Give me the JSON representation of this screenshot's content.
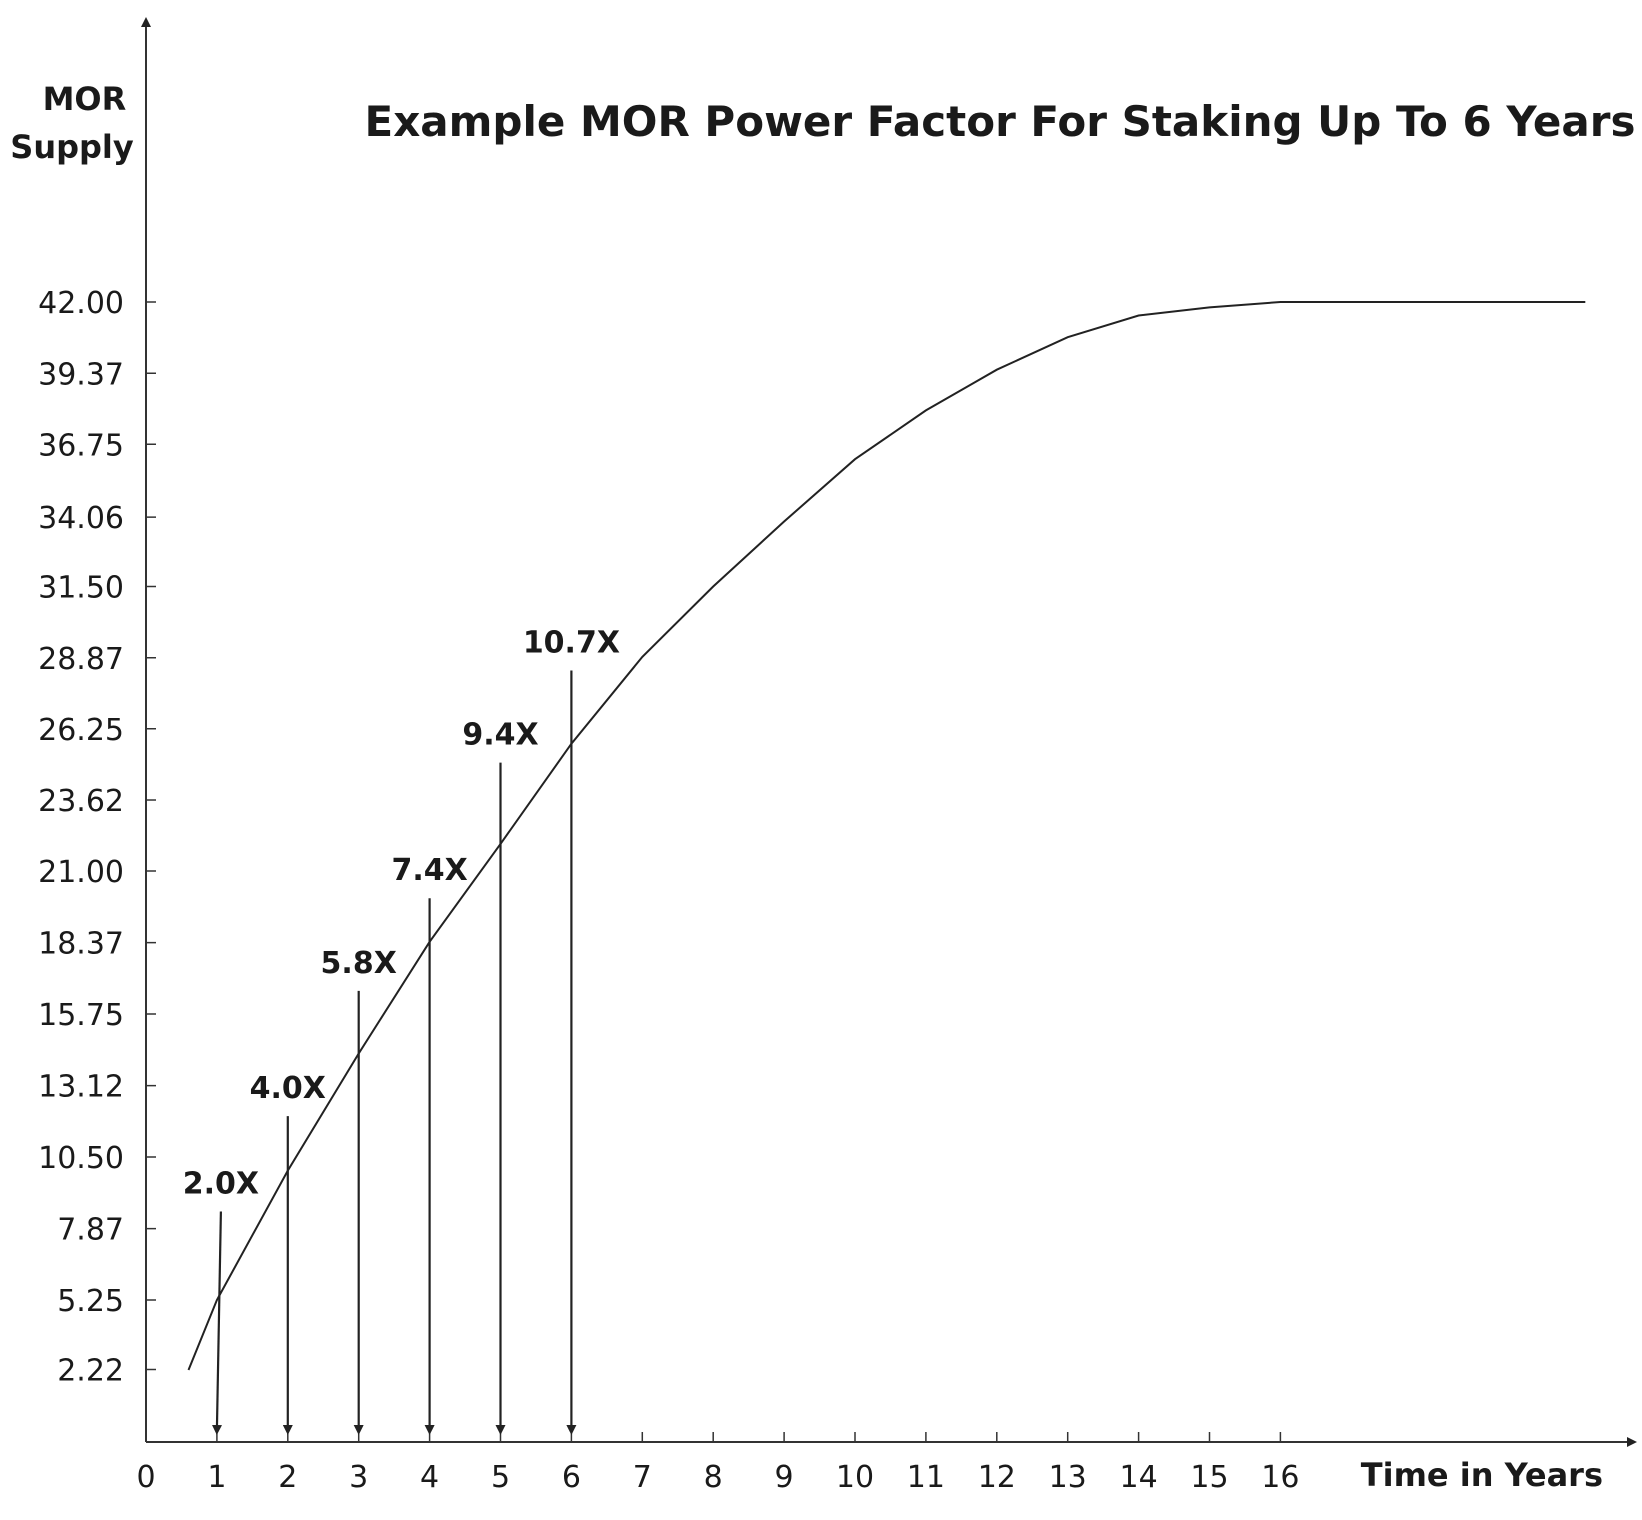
{
  "chart_data": {
    "type": "line",
    "title": "Example MOR Power Factor For Staking Up To 6 Years",
    "xlabel": "Time in Years",
    "ylabel": [
      "MOR",
      "Supply"
    ],
    "x_ticks": [
      "0",
      "1",
      "2",
      "3",
      "4",
      "5",
      "6",
      "7",
      "8",
      "9",
      "10",
      "11",
      "12",
      "13",
      "14",
      "15",
      "16"
    ],
    "y_ticks": [
      "2.22",
      "5.25",
      "7.87",
      "10.50",
      "13.12",
      "15.75",
      "18.37",
      "21.00",
      "23.62",
      "26.25",
      "28.87",
      "31.50",
      "34.06",
      "36.75",
      "39.37",
      "42.00"
    ],
    "series": [
      {
        "x": [
          0.6,
          1,
          2,
          3,
          4,
          5,
          6,
          7,
          8,
          9,
          10,
          11,
          12,
          13,
          14,
          15,
          16,
          20.3
        ],
        "y": [
          2.2,
          5.25,
          10.0,
          14.3,
          18.4,
          22.0,
          25.7,
          28.9,
          31.5,
          33.9,
          36.2,
          38.0,
          39.5,
          40.7,
          41.5,
          41.8,
          42.0,
          42.0
        ]
      }
    ],
    "annotations": [
      {
        "x": 1,
        "label": "2.0X",
        "top": 8.5
      },
      {
        "x": 2,
        "label": "4.0X",
        "top": 12.0
      },
      {
        "x": 3,
        "label": "5.8X",
        "top": 16.6
      },
      {
        "x": 4,
        "label": "7.4X",
        "top": 20.0
      },
      {
        "x": 5,
        "label": "9.4X",
        "top": 25.0
      },
      {
        "x": 6,
        "label": "10.7X",
        "top": 28.4
      }
    ],
    "grid": false,
    "legend": "none"
  }
}
